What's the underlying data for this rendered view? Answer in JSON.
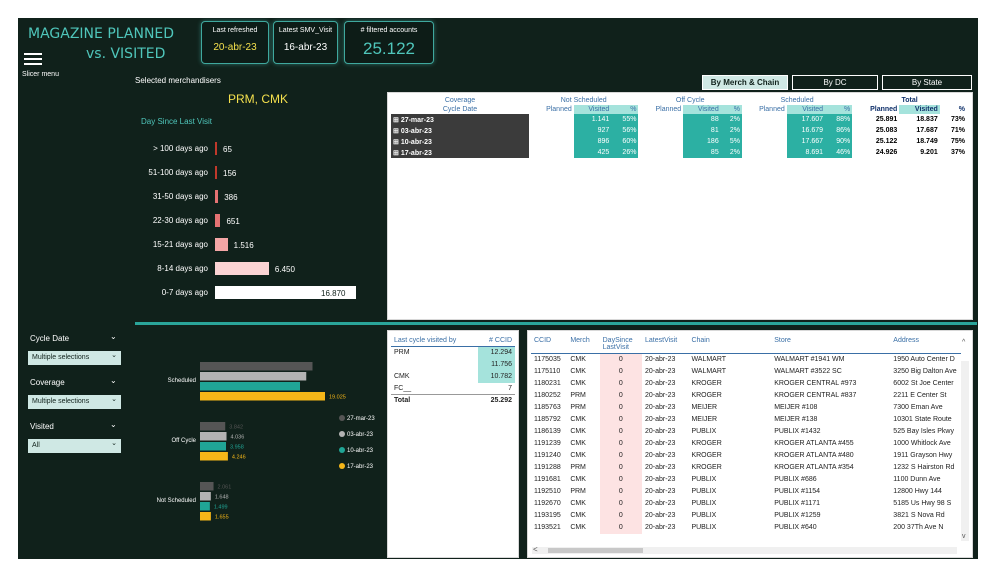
{
  "header": {
    "title_line1": "MAGAZINE PLANNED",
    "title_line2": "vs. VISITED",
    "slicer_menu": "Slicer menu"
  },
  "cards": [
    {
      "label": "Last refreshed",
      "value": "20-abr-23"
    },
    {
      "label": "Latest SMV_Visit",
      "value": "16-abr-23"
    },
    {
      "label": "# filtered accounts",
      "value": "25.122"
    }
  ],
  "merch": {
    "heading": "Selected merchandisers",
    "value": "PRM, CMK"
  },
  "dsl": {
    "title": "Day Since Last Visit",
    "max": 16870,
    "rows": [
      {
        "label": "> 100 days ago",
        "value": 65,
        "display": "65"
      },
      {
        "label": "51-100 days ago",
        "value": 156,
        "display": "156"
      },
      {
        "label": "31-50 days ago",
        "value": 386,
        "display": "386"
      },
      {
        "label": "22-30 days ago",
        "value": 651,
        "display": "651"
      },
      {
        "label": "15-21 days ago",
        "value": 1516,
        "display": "1.516"
      },
      {
        "label": "8-14 days ago",
        "value": 6450,
        "display": "6.450"
      },
      {
        "label": "0-7 days ago",
        "value": 16870,
        "display": "16.870"
      }
    ],
    "colors": [
      "#c0392b",
      "#c0392b",
      "#e57373",
      "#e57373",
      "#f4a6a6",
      "#fbd3d3",
      "#ffffff"
    ]
  },
  "tabs": [
    "By Merch & Chain",
    "By DC",
    "By State"
  ],
  "matrix": {
    "coverage_label": "Coverage",
    "cycle_label": "Cycle Date",
    "groups": [
      "Not Scheduled",
      "Off Cycle",
      "Scheduled",
      "Total"
    ],
    "sub": [
      "Planned",
      "Visited",
      "%"
    ],
    "rows": [
      {
        "date": "27-mar-23",
        "ns": [
          "",
          "1.141",
          "55%"
        ],
        "oc": [
          "",
          "88",
          "2%"
        ],
        "sc": [
          "",
          "17.607",
          "88%"
        ],
        "tot": [
          "25.891",
          "18.837",
          "73%"
        ]
      },
      {
        "date": "03-abr-23",
        "ns": [
          "",
          "927",
          "56%"
        ],
        "oc": [
          "",
          "81",
          "2%"
        ],
        "sc": [
          "",
          "16.679",
          "86%"
        ],
        "tot": [
          "25.083",
          "17.687",
          "71%"
        ]
      },
      {
        "date": "10-abr-23",
        "ns": [
          "",
          "896",
          "60%"
        ],
        "oc": [
          "",
          "186",
          "5%"
        ],
        "sc": [
          "",
          "17.667",
          "90%"
        ],
        "tot": [
          "25.122",
          "18.749",
          "75%"
        ]
      },
      {
        "date": "17-abr-23",
        "ns": [
          "",
          "425",
          "26%"
        ],
        "oc": [
          "",
          "85",
          "2%"
        ],
        "sc": [
          "",
          "8.691",
          "46%"
        ],
        "tot": [
          "24.926",
          "9.201",
          "37%"
        ]
      }
    ]
  },
  "filters": [
    {
      "title": "Cycle Date",
      "value": "Multiple selections"
    },
    {
      "title": "Coverage",
      "value": "Multiple selections"
    },
    {
      "title": "Visited",
      "value": "All"
    }
  ],
  "chart_data": {
    "type": "bar",
    "orientation": "horizontal",
    "categories": [
      "Scheduled",
      "Off Cycle",
      "Not Scheduled"
    ],
    "series": [
      {
        "name": "27-mar-23",
        "color": "#555555",
        "values": [
          null,
          3842,
          2061
        ],
        "labels": [
          "",
          "3.842",
          "2.061"
        ]
      },
      {
        "name": "03-abr-23",
        "color": "#b3b3b3",
        "values": [
          null,
          4036,
          1648
        ],
        "labels": [
          "",
          "4.036",
          "1.648"
        ]
      },
      {
        "name": "10-abr-23",
        "color": "#20a596",
        "values": [
          null,
          3958,
          1499
        ],
        "labels": [
          "",
          "3.958",
          "1.499"
        ]
      },
      {
        "name": "17-abr-23",
        "color": "#f5b618",
        "values": [
          19025,
          4246,
          1655
        ],
        "labels": [
          "19.025",
          "4.246",
          "1.655"
        ]
      }
    ],
    "legend": "right"
  },
  "last_cycle": {
    "headers": [
      "Last cycle visited by",
      "# CCID"
    ],
    "rows": [
      {
        "name": "PRM",
        "value": "12.294"
      },
      {
        "name": "",
        "value": "11.756"
      },
      {
        "name": "CMK",
        "value": "10.782"
      },
      {
        "name": "FC__",
        "value": "7"
      }
    ],
    "total_label": "Total",
    "total_value": "25.292"
  },
  "grid": {
    "headers": [
      "CCID",
      "Merch",
      "DaySince LastVisit",
      "LatestVisit",
      "Chain",
      "Store",
      "Address"
    ],
    "rows": [
      [
        "1175035",
        "CMK",
        "0",
        "20-abr-23",
        "WALMART",
        "WALMART #1941 WM",
        "1950 Auto Center D"
      ],
      [
        "1175110",
        "CMK",
        "0",
        "20-abr-23",
        "WALMART",
        "WALMART #3522 SC",
        "3250 Big Dalton Ave"
      ],
      [
        "1180231",
        "CMK",
        "0",
        "20-abr-23",
        "KROGER",
        "KROGER CENTRAL #973",
        "6002 St Joe Center"
      ],
      [
        "1180252",
        "PRM",
        "0",
        "20-abr-23",
        "KROGER",
        "KROGER CENTRAL #837",
        "2211 E Center St"
      ],
      [
        "1185763",
        "PRM",
        "0",
        "20-abr-23",
        "MEIJER",
        "MEIJER #108",
        "7300 Eman Ave"
      ],
      [
        "1185792",
        "CMK",
        "0",
        "20-abr-23",
        "MEIJER",
        "MEIJER #138",
        "10301 State Route"
      ],
      [
        "1186139",
        "CMK",
        "0",
        "20-abr-23",
        "PUBLIX",
        "PUBLIX #1432",
        "525 Bay Isles Pkwy"
      ],
      [
        "1191239",
        "CMK",
        "0",
        "20-abr-23",
        "KROGER",
        "KROGER ATLANTA #455",
        "1000 Whitlock Ave"
      ],
      [
        "1191240",
        "CMK",
        "0",
        "20-abr-23",
        "KROGER",
        "KROGER ATLANTA #480",
        "1911 Grayson Hwy"
      ],
      [
        "1191288",
        "PRM",
        "0",
        "20-abr-23",
        "KROGER",
        "KROGER ATLANTA #354",
        "1232 S Hairston Rd"
      ],
      [
        "1191681",
        "CMK",
        "0",
        "20-abr-23",
        "PUBLIX",
        "PUBLIX #686",
        "1100 Dunn Ave"
      ],
      [
        "1192510",
        "PRM",
        "0",
        "20-abr-23",
        "PUBLIX",
        "PUBLIX #1154",
        "12800 Hwy 144"
      ],
      [
        "1192670",
        "CMK",
        "0",
        "20-abr-23",
        "PUBLIX",
        "PUBLIX #1171",
        "5185 Us Hwy 98 S"
      ],
      [
        "1193195",
        "CMK",
        "0",
        "20-abr-23",
        "PUBLIX",
        "PUBLIX #1259",
        "3821 S Nova Rd"
      ],
      [
        "1193521",
        "CMK",
        "0",
        "20-abr-23",
        "PUBLIX",
        "PUBLIX #640",
        "200 37Th Ave N"
      ]
    ]
  }
}
